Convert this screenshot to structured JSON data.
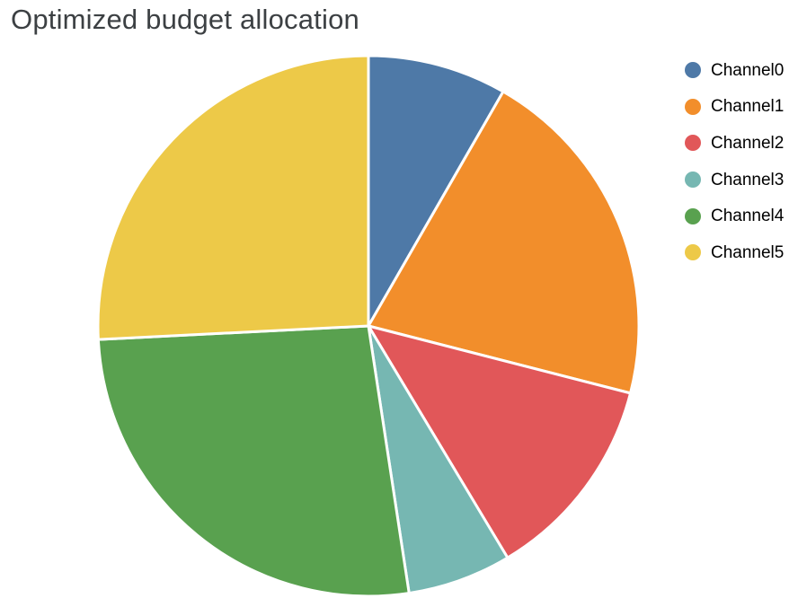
{
  "chart_data": {
    "type": "pie",
    "title": "Optimized budget allocation",
    "labels": [
      "Channel0",
      "Channel1",
      "Channel2",
      "Channel3",
      "Channel4",
      "Channel5"
    ],
    "values": [
      8.3,
      20.7,
      12.4,
      6.2,
      26.6,
      25.8
    ],
    "unit": "percent_of_total",
    "colors": [
      "#4e79a7",
      "#f28e2b",
      "#e15759",
      "#76b7b2",
      "#59a14f",
      "#edc948"
    ],
    "start_angle_deg": 0,
    "direction": "clockwise",
    "slice_border_color": "#ffffff",
    "legend_position": "right"
  }
}
